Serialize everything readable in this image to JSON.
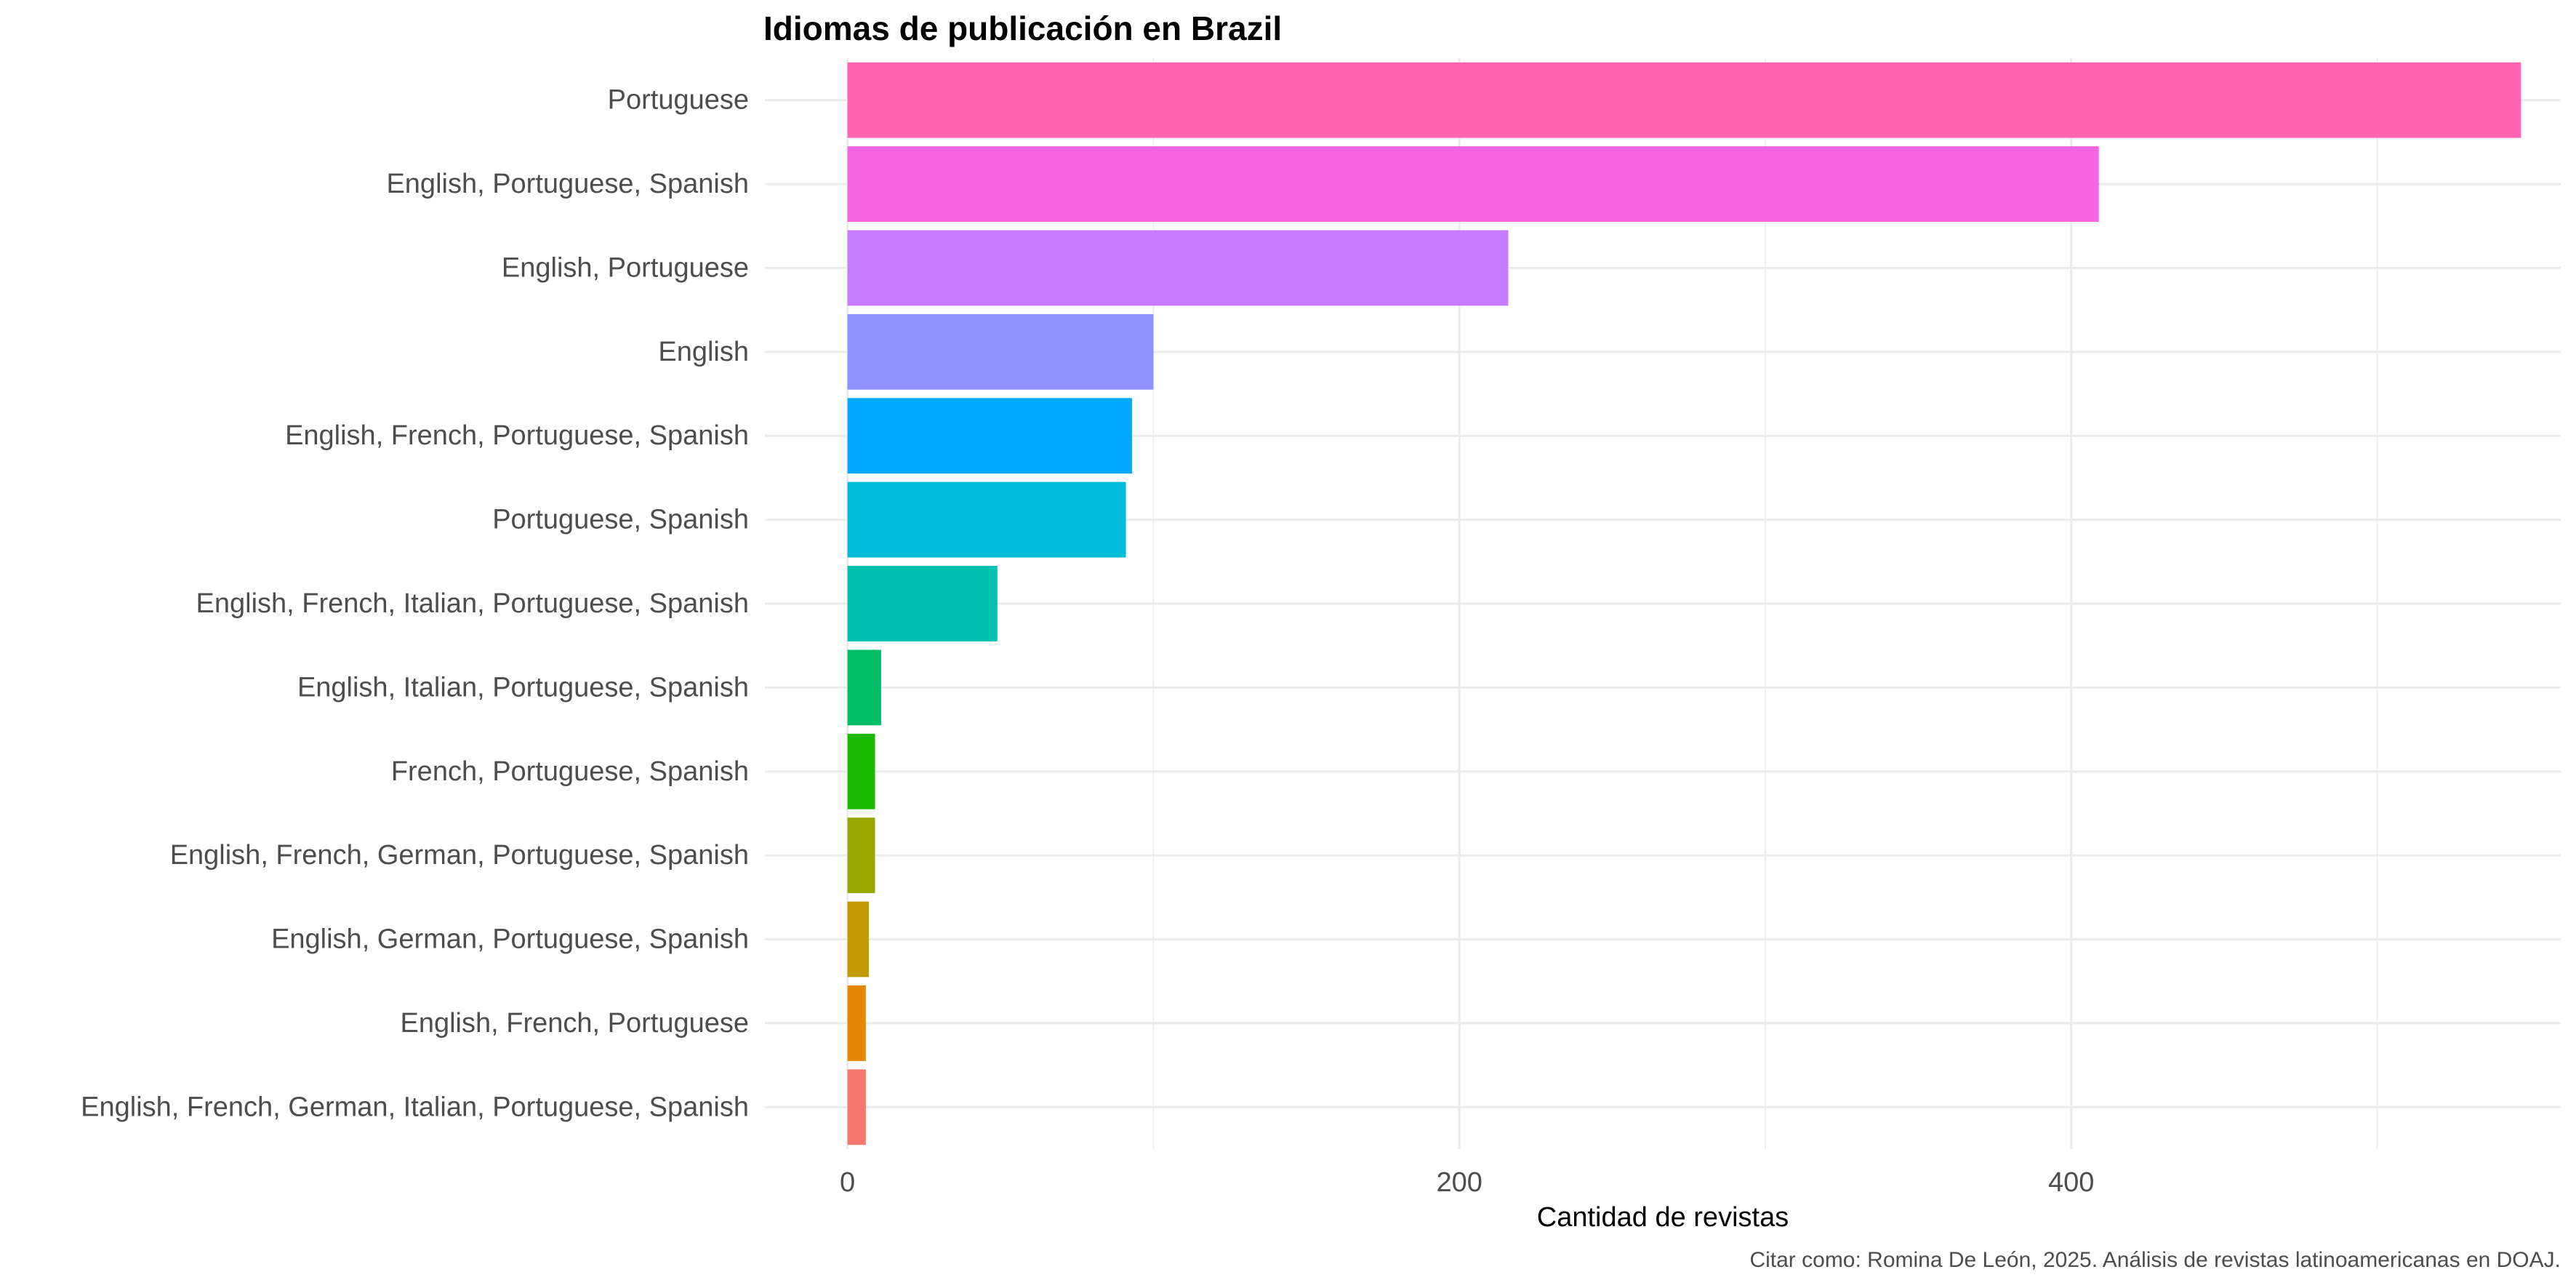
{
  "chart_data": {
    "type": "bar",
    "orientation": "horizontal",
    "title": "Idiomas de publicación en Brazil",
    "xlabel": "Cantidad de revistas",
    "ylabel": "",
    "caption": "Citar como: Romina De León, 2025. Análisis de revistas latinoamericanas en DOAJ.",
    "xlim": [
      -27,
      560
    ],
    "xticks": [
      0,
      200,
      400
    ],
    "xtick_labels": [
      "0",
      "200",
      "400"
    ],
    "grid": true,
    "legend": "none",
    "categories": [
      "Portuguese",
      "English, Portuguese, Spanish",
      "English, Portuguese",
      "English",
      "English, French, Portuguese, Spanish",
      "Portuguese, Spanish",
      "English, French, Italian, Portuguese, Spanish",
      "English, Italian, Portuguese, Spanish",
      "French, Portuguese, Spanish",
      "English, French, German, Portuguese, Spanish",
      "English, German, Portuguese, Spanish",
      "English, French, Portuguese",
      "English, French, German, Italian, Portuguese, Spanish"
    ],
    "values": [
      547,
      409,
      216,
      100,
      93,
      91,
      49,
      11,
      9,
      9,
      7,
      6,
      6
    ],
    "colors": [
      "#FF64B0",
      "#F564E3",
      "#C77CFF",
      "#8F91FF",
      "#00A9FF",
      "#00BCD8",
      "#00C0AF",
      "#00BE67",
      "#1CB900",
      "#98A800",
      "#C39A00",
      "#E58700",
      "#F8766D"
    ]
  }
}
